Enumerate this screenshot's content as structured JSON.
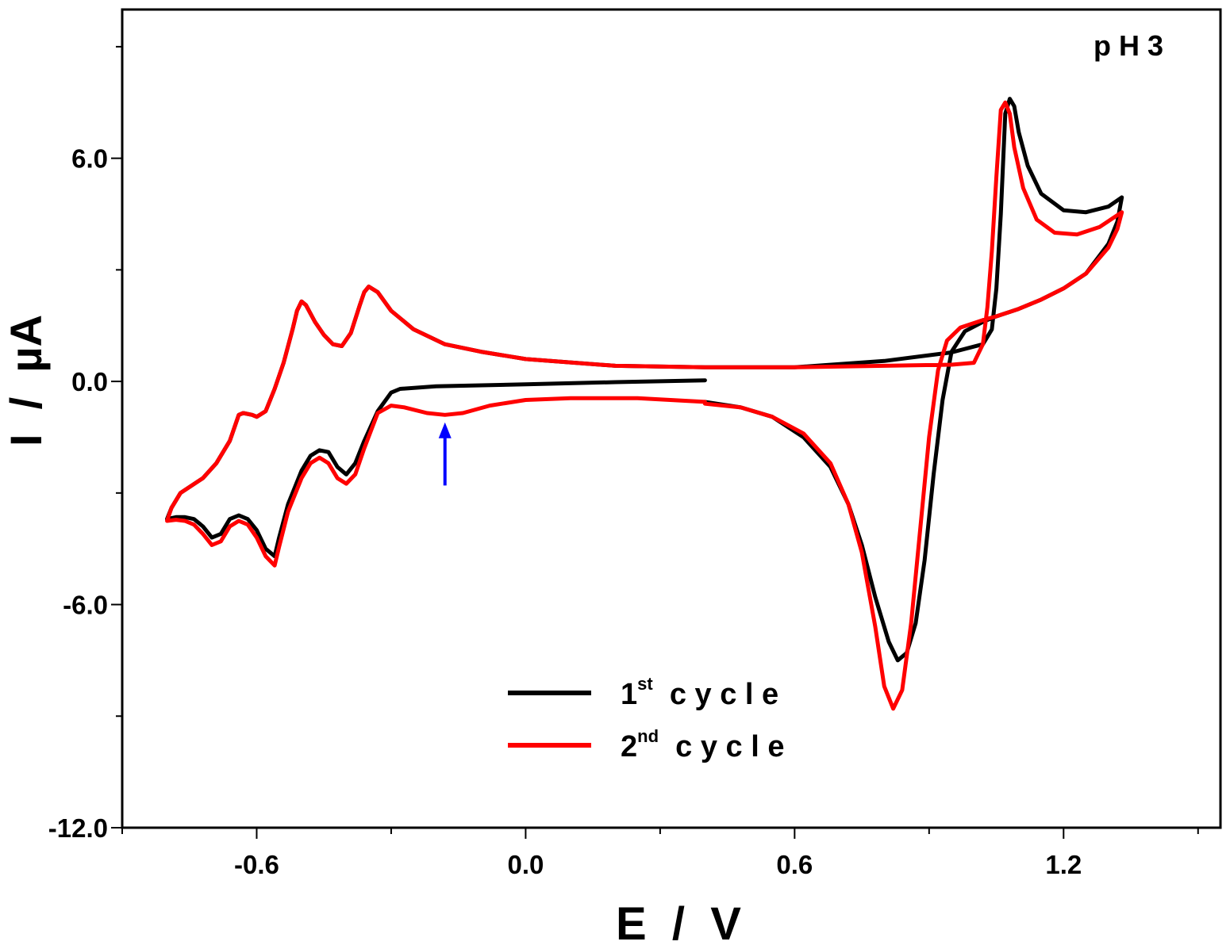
{
  "chart_data": {
    "type": "line",
    "title": "",
    "xlabel": "E  /  V",
    "ylabel": "I  /  µA",
    "xlim": [
      -0.9,
      1.55
    ],
    "ylim": [
      -12.0,
      10.0
    ],
    "grid": false,
    "legend_position": "bottom-center",
    "annotation": "p H 3",
    "x_ticks": [
      -0.6,
      0.0,
      0.6,
      1.2
    ],
    "x_tick_labels": [
      "-0.6",
      "0.0",
      "0.6",
      "1.2"
    ],
    "y_ticks": [
      -12.0,
      -6.0,
      0.0,
      6.0
    ],
    "y_tick_labels": [
      "-12.0",
      "-6.0",
      "0.0",
      "6.0"
    ],
    "arrow": {
      "x": -0.18,
      "y_tail": -2.8,
      "y_head": -1.1,
      "color": "#0000ff"
    },
    "series": [
      {
        "name": "1st cycle",
        "legend_main": "1",
        "legend_sup": "st",
        "legend_tail": "c y c l e",
        "color": "#000000",
        "points": [
          [
            0.4,
            0.03
          ],
          [
            0.2,
            -0.02
          ],
          [
            0.0,
            -0.08
          ],
          [
            -0.2,
            -0.13
          ],
          [
            -0.28,
            -0.2
          ],
          [
            -0.3,
            -0.3
          ],
          [
            -0.33,
            -0.8
          ],
          [
            -0.36,
            -1.6
          ],
          [
            -0.38,
            -2.2
          ],
          [
            -0.4,
            -2.5
          ],
          [
            -0.42,
            -2.3
          ],
          [
            -0.44,
            -1.9
          ],
          [
            -0.46,
            -1.85
          ],
          [
            -0.48,
            -2.0
          ],
          [
            -0.5,
            -2.4
          ],
          [
            -0.53,
            -3.3
          ],
          [
            -0.55,
            -4.2
          ],
          [
            -0.56,
            -4.7
          ],
          [
            -0.58,
            -4.5
          ],
          [
            -0.6,
            -4.0
          ],
          [
            -0.62,
            -3.7
          ],
          [
            -0.64,
            -3.6
          ],
          [
            -0.66,
            -3.7
          ],
          [
            -0.68,
            -4.1
          ],
          [
            -0.7,
            -4.2
          ],
          [
            -0.72,
            -3.9
          ],
          [
            -0.74,
            -3.7
          ],
          [
            -0.76,
            -3.65
          ],
          [
            -0.78,
            -3.65
          ],
          [
            -0.8,
            -3.7
          ],
          [
            -0.79,
            -3.4
          ],
          [
            -0.77,
            -3.0
          ],
          [
            -0.72,
            -2.6
          ],
          [
            -0.69,
            -2.2
          ],
          [
            -0.66,
            -1.6
          ],
          [
            -0.64,
            -0.9
          ],
          [
            -0.63,
            -0.85
          ],
          [
            -0.61,
            -0.9
          ],
          [
            -0.6,
            -0.95
          ],
          [
            -0.58,
            -0.8
          ],
          [
            -0.56,
            -0.2
          ],
          [
            -0.54,
            0.5
          ],
          [
            -0.52,
            1.4
          ],
          [
            -0.51,
            1.9
          ],
          [
            -0.5,
            2.15
          ],
          [
            -0.49,
            2.05
          ],
          [
            -0.47,
            1.6
          ],
          [
            -0.45,
            1.25
          ],
          [
            -0.43,
            1.0
          ],
          [
            -0.41,
            0.95
          ],
          [
            -0.39,
            1.3
          ],
          [
            -0.37,
            2.05
          ],
          [
            -0.36,
            2.4
          ],
          [
            -0.35,
            2.55
          ],
          [
            -0.33,
            2.4
          ],
          [
            -0.3,
            1.9
          ],
          [
            -0.25,
            1.4
          ],
          [
            -0.18,
            1.0
          ],
          [
            -0.1,
            0.8
          ],
          [
            0.0,
            0.6
          ],
          [
            0.2,
            0.42
          ],
          [
            0.4,
            0.38
          ],
          [
            0.6,
            0.38
          ],
          [
            0.8,
            0.55
          ],
          [
            0.95,
            0.78
          ],
          [
            1.02,
            1.0
          ],
          [
            1.04,
            1.4
          ],
          [
            1.05,
            2.5
          ],
          [
            1.06,
            4.5
          ],
          [
            1.07,
            7.2
          ],
          [
            1.08,
            7.6
          ],
          [
            1.09,
            7.4
          ],
          [
            1.1,
            6.7
          ],
          [
            1.12,
            5.8
          ],
          [
            1.15,
            5.05
          ],
          [
            1.2,
            4.6
          ],
          [
            1.25,
            4.55
          ],
          [
            1.3,
            4.7
          ],
          [
            1.33,
            4.95
          ],
          [
            1.32,
            4.3
          ],
          [
            1.3,
            3.7
          ],
          [
            1.25,
            2.9
          ],
          [
            1.2,
            2.5
          ],
          [
            1.15,
            2.2
          ],
          [
            1.1,
            1.95
          ],
          [
            1.05,
            1.75
          ],
          [
            1.02,
            1.6
          ],
          [
            0.98,
            1.35
          ],
          [
            0.95,
            0.8
          ],
          [
            0.93,
            -0.5
          ],
          [
            0.91,
            -2.5
          ],
          [
            0.89,
            -4.8
          ],
          [
            0.87,
            -6.5
          ],
          [
            0.85,
            -7.3
          ],
          [
            0.83,
            -7.5
          ],
          [
            0.81,
            -7.0
          ],
          [
            0.78,
            -5.8
          ],
          [
            0.75,
            -4.4
          ],
          [
            0.72,
            -3.3
          ],
          [
            0.68,
            -2.3
          ],
          [
            0.62,
            -1.5
          ],
          [
            0.55,
            -0.95
          ],
          [
            0.48,
            -0.7
          ],
          [
            0.4,
            -0.55
          ]
        ]
      },
      {
        "name": "2nd cycle",
        "legend_main": "2",
        "legend_sup": "nd",
        "legend_tail": "c y c l e",
        "color": "#ff0000",
        "points": [
          [
            0.4,
            -0.55
          ],
          [
            0.25,
            -0.45
          ],
          [
            0.1,
            -0.45
          ],
          [
            0.0,
            -0.5
          ],
          [
            -0.08,
            -0.65
          ],
          [
            -0.14,
            -0.85
          ],
          [
            -0.18,
            -0.9
          ],
          [
            -0.22,
            -0.85
          ],
          [
            -0.27,
            -0.7
          ],
          [
            -0.3,
            -0.65
          ],
          [
            -0.33,
            -0.85
          ],
          [
            -0.36,
            -1.8
          ],
          [
            -0.38,
            -2.5
          ],
          [
            -0.4,
            -2.75
          ],
          [
            -0.42,
            -2.6
          ],
          [
            -0.44,
            -2.2
          ],
          [
            -0.46,
            -2.05
          ],
          [
            -0.48,
            -2.2
          ],
          [
            -0.5,
            -2.6
          ],
          [
            -0.53,
            -3.5
          ],
          [
            -0.55,
            -4.45
          ],
          [
            -0.56,
            -4.95
          ],
          [
            -0.58,
            -4.7
          ],
          [
            -0.6,
            -4.2
          ],
          [
            -0.62,
            -3.85
          ],
          [
            -0.64,
            -3.75
          ],
          [
            -0.66,
            -3.9
          ],
          [
            -0.68,
            -4.3
          ],
          [
            -0.7,
            -4.4
          ],
          [
            -0.72,
            -4.1
          ],
          [
            -0.74,
            -3.85
          ],
          [
            -0.76,
            -3.75
          ],
          [
            -0.78,
            -3.72
          ],
          [
            -0.8,
            -3.75
          ],
          [
            -0.79,
            -3.4
          ],
          [
            -0.77,
            -3.0
          ],
          [
            -0.72,
            -2.6
          ],
          [
            -0.69,
            -2.2
          ],
          [
            -0.66,
            -1.6
          ],
          [
            -0.64,
            -0.9
          ],
          [
            -0.63,
            -0.85
          ],
          [
            -0.61,
            -0.9
          ],
          [
            -0.6,
            -0.95
          ],
          [
            -0.58,
            -0.8
          ],
          [
            -0.56,
            -0.2
          ],
          [
            -0.54,
            0.5
          ],
          [
            -0.52,
            1.4
          ],
          [
            -0.51,
            1.9
          ],
          [
            -0.5,
            2.15
          ],
          [
            -0.49,
            2.05
          ],
          [
            -0.47,
            1.6
          ],
          [
            -0.45,
            1.25
          ],
          [
            -0.43,
            1.0
          ],
          [
            -0.41,
            0.95
          ],
          [
            -0.39,
            1.3
          ],
          [
            -0.37,
            2.05
          ],
          [
            -0.36,
            2.4
          ],
          [
            -0.35,
            2.55
          ],
          [
            -0.33,
            2.4
          ],
          [
            -0.3,
            1.9
          ],
          [
            -0.25,
            1.4
          ],
          [
            -0.18,
            1.0
          ],
          [
            -0.1,
            0.8
          ],
          [
            0.0,
            0.6
          ],
          [
            0.2,
            0.42
          ],
          [
            0.4,
            0.38
          ],
          [
            0.6,
            0.38
          ],
          [
            0.8,
            0.42
          ],
          [
            0.95,
            0.45
          ],
          [
            1.0,
            0.5
          ],
          [
            1.02,
            1.0
          ],
          [
            1.03,
            2.0
          ],
          [
            1.04,
            3.5
          ],
          [
            1.05,
            5.5
          ],
          [
            1.06,
            7.3
          ],
          [
            1.07,
            7.5
          ],
          [
            1.08,
            7.2
          ],
          [
            1.09,
            6.3
          ],
          [
            1.11,
            5.2
          ],
          [
            1.14,
            4.35
          ],
          [
            1.18,
            4.0
          ],
          [
            1.23,
            3.95
          ],
          [
            1.28,
            4.15
          ],
          [
            1.33,
            4.55
          ],
          [
            1.32,
            4.1
          ],
          [
            1.3,
            3.6
          ],
          [
            1.25,
            2.9
          ],
          [
            1.2,
            2.5
          ],
          [
            1.15,
            2.2
          ],
          [
            1.1,
            1.95
          ],
          [
            1.05,
            1.75
          ],
          [
            1.02,
            1.65
          ],
          [
            0.97,
            1.45
          ],
          [
            0.94,
            1.1
          ],
          [
            0.92,
            0.3
          ],
          [
            0.9,
            -1.5
          ],
          [
            0.88,
            -4.0
          ],
          [
            0.86,
            -6.5
          ],
          [
            0.84,
            -8.3
          ],
          [
            0.82,
            -8.8
          ],
          [
            0.8,
            -8.2
          ],
          [
            0.78,
            -6.6
          ],
          [
            0.75,
            -4.6
          ],
          [
            0.72,
            -3.3
          ],
          [
            0.68,
            -2.2
          ],
          [
            0.62,
            -1.4
          ],
          [
            0.55,
            -0.95
          ],
          [
            0.48,
            -0.7
          ],
          [
            0.4,
            -0.6
          ]
        ]
      }
    ]
  }
}
